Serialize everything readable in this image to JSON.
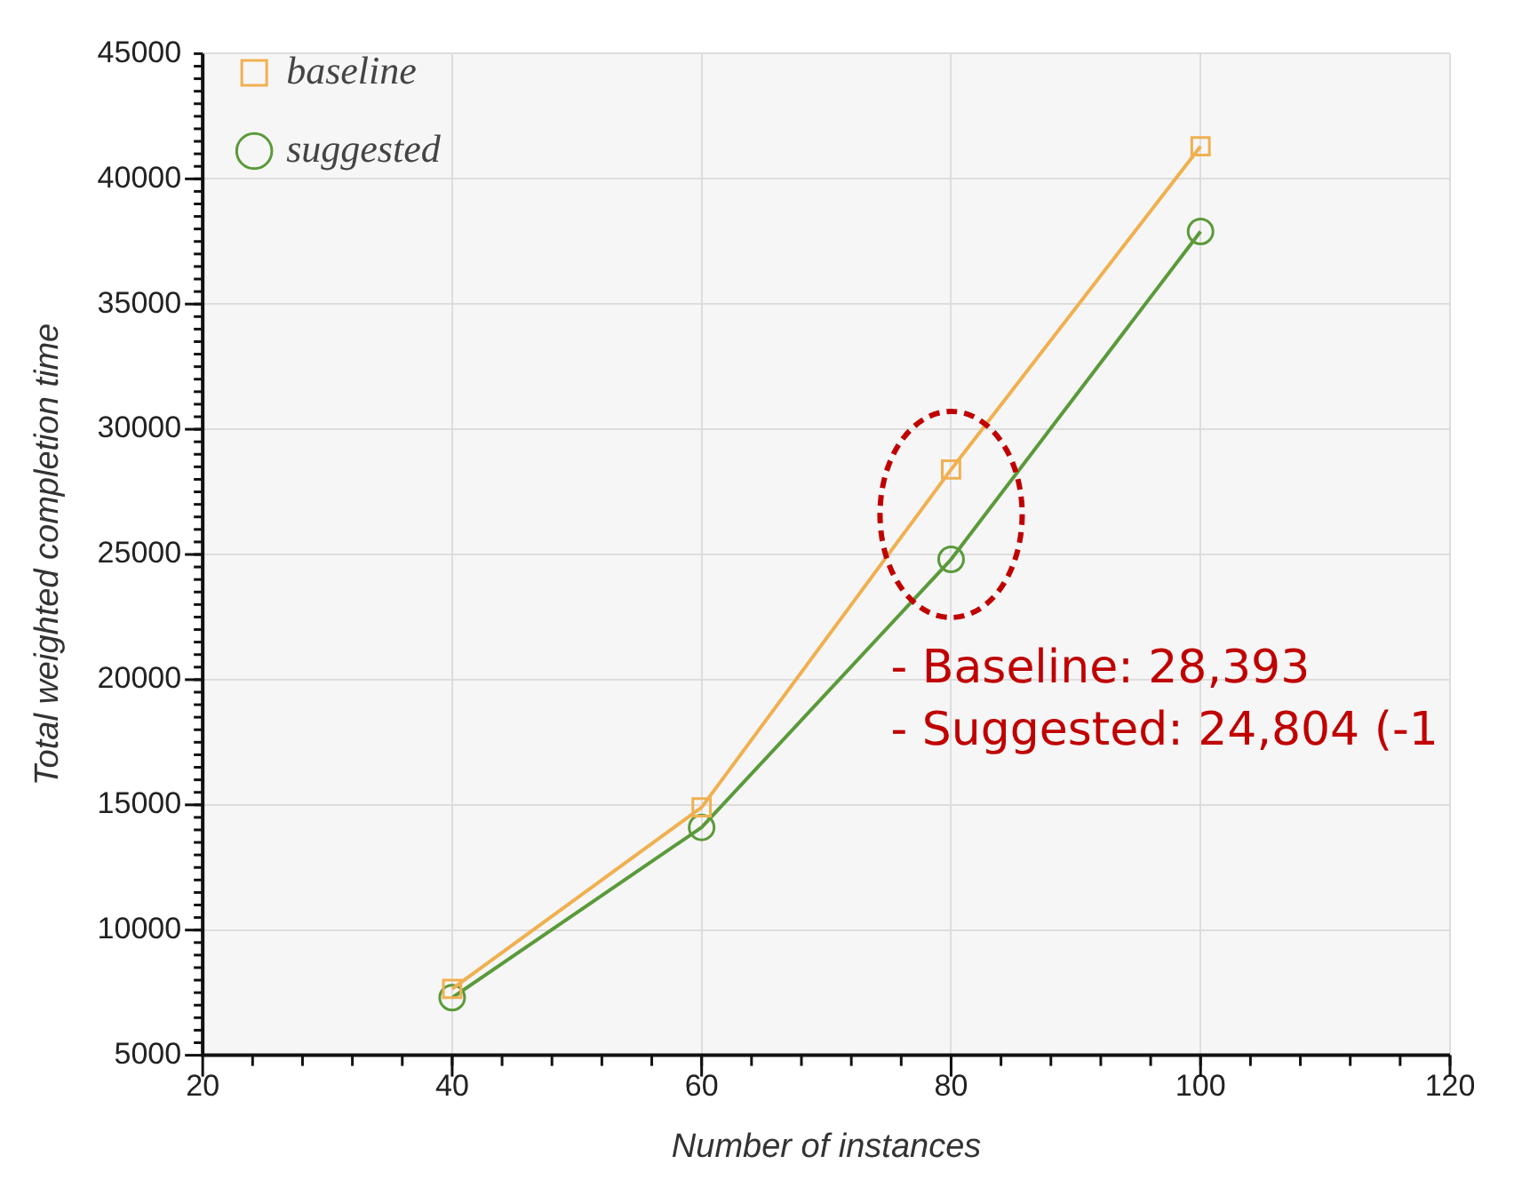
{
  "chart_data": {
    "type": "line",
    "xlabel": "Number of instances",
    "ylabel": "Total weighted completion time",
    "x": [
      40,
      60,
      80,
      100
    ],
    "series": [
      {
        "name": "baseline",
        "color": "#f0b050",
        "marker": "square",
        "values": [
          7650,
          14900,
          28393,
          41300
        ]
      },
      {
        "name": "suggested",
        "color": "#5a9a3a",
        "marker": "circle",
        "values": [
          7300,
          14100,
          24804,
          37900
        ]
      }
    ],
    "xlim": [
      20,
      120
    ],
    "xticks": [
      20,
      40,
      60,
      80,
      100,
      120
    ],
    "ylim": [
      5000,
      45000
    ],
    "yticks": [
      5000,
      10000,
      15000,
      20000,
      25000,
      30000,
      35000,
      40000,
      45000
    ],
    "grid": true,
    "legend": "top left",
    "line_style": "solid",
    "annotations": [
      "- Baseline: 28,393",
      "- Suggested: 24,804 (-1"
    ]
  }
}
